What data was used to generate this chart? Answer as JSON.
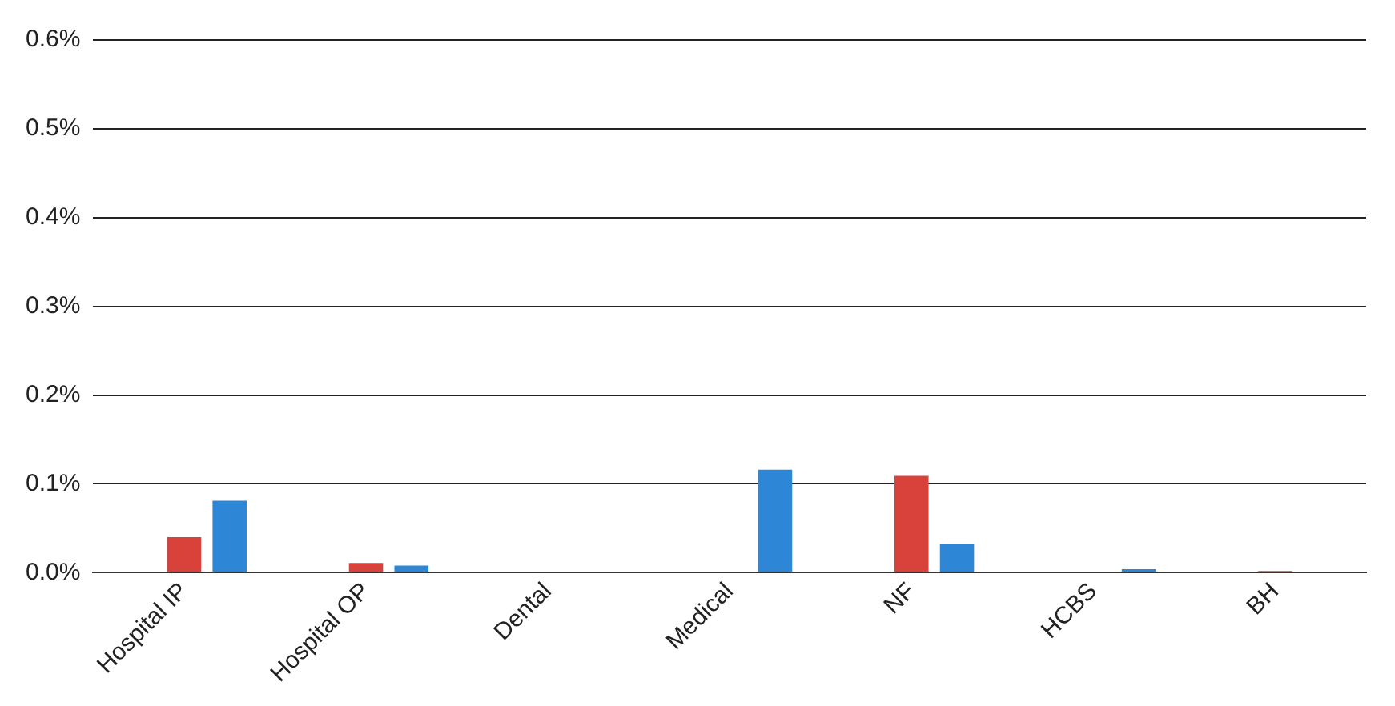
{
  "chart_data": {
    "type": "bar",
    "categories": [
      "Hospital IP",
      "Hospital OP",
      "Dental",
      "Medical",
      "NF",
      "HCBS",
      "BH"
    ],
    "series": [
      {
        "color": "#f5a623",
        "values": [
          0,
          0,
          0,
          0,
          0,
          0,
          0
        ]
      },
      {
        "color": "#d9413b",
        "values": [
          0.04,
          0.011,
          0,
          0,
          0.109,
          0,
          0.002
        ]
      },
      {
        "color": "#2e86d6",
        "values": [
          0.081,
          0.008,
          0,
          0.116,
          0.032,
          0.004,
          0
        ]
      }
    ],
    "ylim": [
      0,
      0.6
    ],
    "yticks": [
      {
        "value": 0,
        "label": "0.0%"
      },
      {
        "value": 0.1,
        "label": "0.1%"
      },
      {
        "value": 0.2,
        "label": "0.2%"
      },
      {
        "value": 0.3,
        "label": "0.3%"
      },
      {
        "value": 0.4,
        "label": "0.4%"
      },
      {
        "value": 0.5,
        "label": "0.5%"
      },
      {
        "value": 0.6,
        "label": "0.6%"
      }
    ],
    "grid": "y",
    "legend": false
  }
}
